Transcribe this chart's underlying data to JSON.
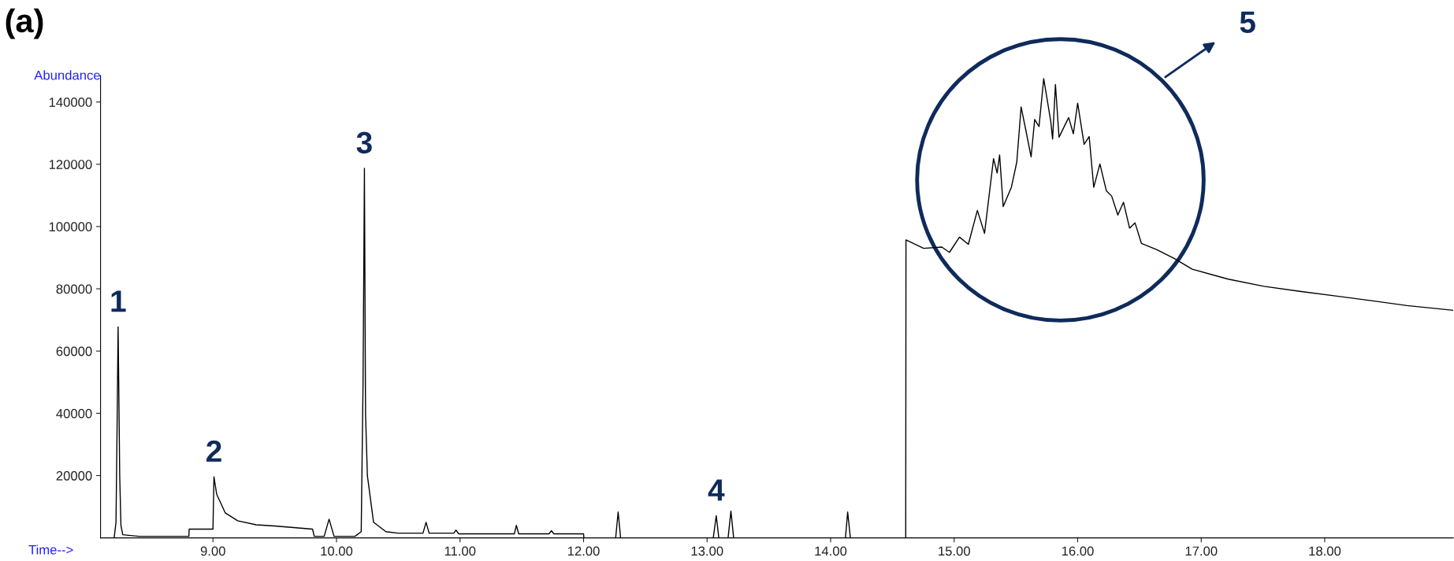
{
  "chart_data": {
    "type": "line",
    "title": "(a)",
    "xlabel": "Time-->",
    "ylabel": "Abundance",
    "series": [
      {
        "color": "#000000",
        "x": [
          8.2,
          8.215,
          8.225,
          8.232,
          8.237,
          8.245,
          8.255,
          8.27,
          8.4,
          8.6,
          8.805,
          8.807,
          9.0,
          9.008,
          9.03,
          9.1,
          9.2,
          9.35,
          9.5,
          9.806,
          9.82,
          9.9,
          9.94,
          9.98,
          10.15,
          10.2,
          10.215,
          10.222,
          10.226,
          10.235,
          10.25,
          10.3,
          10.4,
          10.5,
          10.7,
          10.725,
          10.75,
          10.95,
          10.967,
          10.99,
          11.44,
          11.456,
          11.475,
          11.72,
          11.74,
          11.76,
          12.0,
          12.003,
          12.26,
          12.28,
          12.3,
          13.05,
          13.074,
          13.095,
          13.17,
          13.193,
          13.215,
          14.12,
          14.138,
          14.16,
          14.6,
          14.608,
          14.61,
          14.753,
          14.9,
          14.962,
          15.043,
          15.115,
          15.188,
          15.246,
          15.319,
          15.348,
          15.368,
          15.397,
          15.464,
          15.507,
          15.542,
          15.58,
          15.623,
          15.652,
          15.687,
          15.725,
          15.782,
          15.797,
          15.82,
          15.849,
          15.927,
          15.965,
          16.0,
          16.052,
          16.093,
          16.13,
          16.18,
          16.232,
          16.275,
          16.325,
          16.371,
          16.42,
          16.464,
          16.516,
          16.638,
          16.783,
          16.927,
          17.218,
          17.507,
          17.797,
          18.087,
          18.377,
          18.667,
          19.04
        ],
        "values": [
          0,
          5000,
          40000,
          67800,
          50000,
          20000,
          4000,
          1000,
          500,
          500,
          500,
          2800,
          2800,
          19600,
          14000,
          8000,
          5500,
          4200,
          3800,
          2800,
          500,
          500,
          6000,
          500,
          500,
          2000,
          50000,
          92100,
          118700,
          40000,
          20000,
          5000,
          2000,
          1500,
          1500,
          5000,
          1500,
          1500,
          2500,
          1300,
          1300,
          4000,
          1300,
          1300,
          2300,
          1300,
          1300,
          0,
          0,
          8300,
          0,
          0,
          7100,
          0,
          0,
          8600,
          0,
          0,
          8300,
          0,
          0,
          0,
          95700,
          93000,
          93400,
          91700,
          96600,
          94300,
          105200,
          97800,
          121800,
          117200,
          123000,
          106400,
          112700,
          120700,
          138400,
          131000,
          122400,
          134400,
          132100,
          147500,
          133800,
          128100,
          145600,
          128700,
          135000,
          129800,
          139600,
          126400,
          128900,
          112600,
          120100,
          111500,
          109800,
          103700,
          107800,
          99500,
          101200,
          94600,
          92600,
          89700,
          86300,
          83100,
          80800,
          79200,
          77700,
          76200,
          74600,
          73100
        ]
      }
    ],
    "xlim": [
      8.09,
      19.04
    ],
    "ylim": [
      0,
      148500
    ],
    "xticks": [
      {
        "value": 9,
        "label": "9.00"
      },
      {
        "value": 10,
        "label": "10.00"
      },
      {
        "value": 11,
        "label": "11.00"
      },
      {
        "value": 12,
        "label": "12.00"
      },
      {
        "value": 13,
        "label": "13.00"
      },
      {
        "value": 14,
        "label": "14.00"
      },
      {
        "value": 15,
        "label": "15.00"
      },
      {
        "value": 16,
        "label": "16.00"
      },
      {
        "value": 17,
        "label": "17.00"
      },
      {
        "value": 18,
        "label": "18.00"
      }
    ],
    "yticks": [
      20000,
      40000,
      60000,
      80000,
      100000,
      120000,
      140000
    ],
    "grid": false,
    "legend": false,
    "annotations": [
      {
        "text": "1",
        "x": 8.232,
        "y": 67800
      },
      {
        "text": "2",
        "x": 9.008,
        "y": 19600
      },
      {
        "text": "3",
        "x": 10.226,
        "y": 118700
      },
      {
        "text": "4",
        "x": 13.074,
        "y": 7100
      },
      "5"
    ]
  }
}
